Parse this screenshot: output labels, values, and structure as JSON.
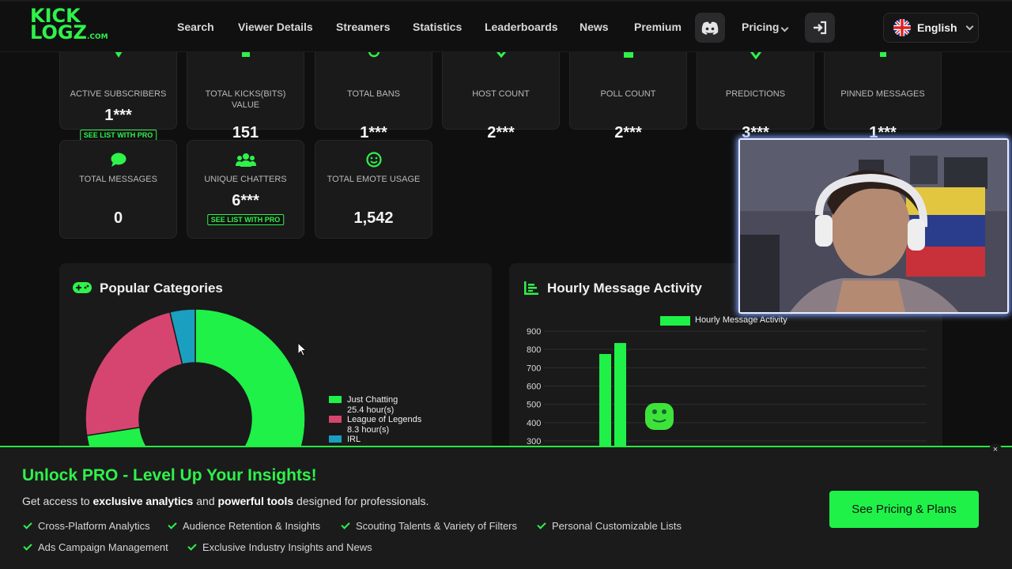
{
  "nav": {
    "logo_line1": "KICK",
    "logo_line2": "LOGZ",
    "logo_suffix": ".COM",
    "links": [
      "Search",
      "Viewer Details",
      "Streamers",
      "Statistics",
      "Leaderboards",
      "News",
      "Premium"
    ],
    "pricing": "Pricing",
    "language": "English"
  },
  "stats": [
    {
      "label": "ACTIVE SUBSCRIBERS",
      "value": "1***",
      "pro": "SEE LIST WITH PRO"
    },
    {
      "label": "TOTAL KICKS(BITS) VALUE",
      "value": "151"
    },
    {
      "label": "TOTAL BANS",
      "value": "1***"
    },
    {
      "label": "HOST COUNT",
      "value": "2***"
    },
    {
      "label": "POLL COUNT",
      "value": "2***"
    },
    {
      "label": "PREDICTIONS",
      "value": "3***"
    },
    {
      "label": "PINNED MESSAGES",
      "value": "1***"
    },
    {
      "label": "TOTAL MESSAGES",
      "value": "0"
    },
    {
      "label": "UNIQUE CHATTERS",
      "value": "6***",
      "pro": "SEE LIST WITH PRO"
    },
    {
      "label": "TOTAL EMOTE USAGE",
      "value": "1,542"
    }
  ],
  "popular": {
    "title": "Popular Categories",
    "legend": [
      {
        "name": "Just Chatting",
        "detail": "25.4 hour(s)",
        "color": "#1ff148"
      },
      {
        "name": "League of Legends",
        "detail": "8.3 hour(s)",
        "color": "#d6456f"
      },
      {
        "name": "IRL",
        "detail": "",
        "color": "#1a9fc0"
      }
    ]
  },
  "hourly": {
    "title": "Hourly Message Activity",
    "legend": "Hourly Message Activity"
  },
  "chart_data": [
    {
      "type": "pie",
      "labels": [
        "Just Chatting",
        "League of Legends",
        "IRL"
      ],
      "values": [
        25.4,
        8.3,
        1.3
      ],
      "colors": [
        "#1ff148",
        "#d6456f",
        "#1a9fc0"
      ],
      "title": "Popular Categories"
    },
    {
      "type": "bar",
      "title": "Hourly Message Activity",
      "series": [
        {
          "name": "Hourly Message Activity",
          "values": [
            775,
            835
          ]
        }
      ],
      "ylim": [
        300,
        900
      ],
      "yticks": [
        "900",
        "800",
        "700",
        "600",
        "500",
        "400",
        "300"
      ],
      "color": "#1ff148"
    }
  ],
  "banner": {
    "title": "Unlock PRO - Level Up Your Insights!",
    "sub_a": "Get access to ",
    "sub_b": "exclusive analytics",
    "sub_c": " and ",
    "sub_d": "powerful tools",
    "sub_e": " designed for professionals.",
    "features": [
      "Cross-Platform Analytics",
      "Audience Retention & Insights",
      "Scouting Talents & Variety of Filters",
      "Personal Customizable Lists",
      "Ads Campaign Management",
      "Exclusive Industry Insights and News"
    ],
    "cta": "See Pricing & Plans",
    "close": "×"
  }
}
